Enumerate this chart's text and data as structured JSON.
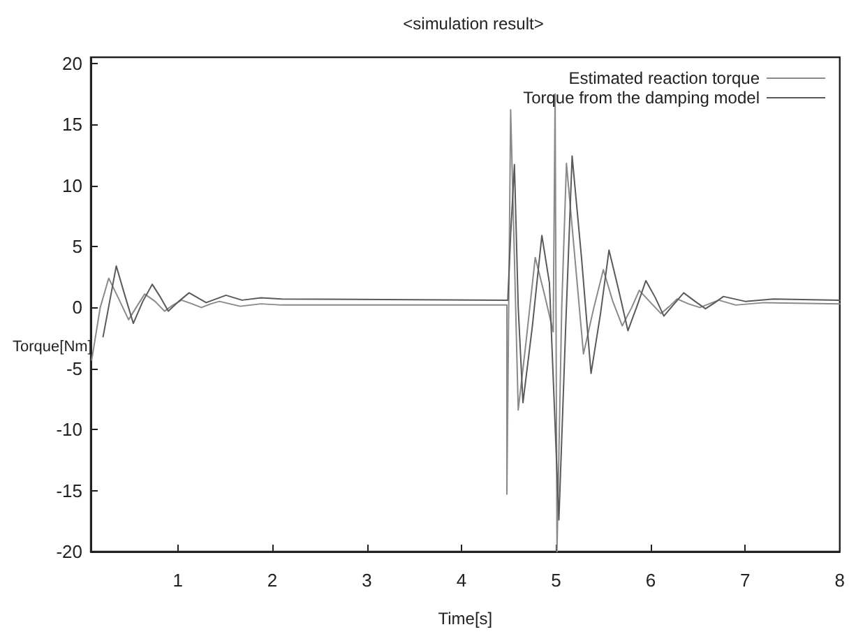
{
  "chart_data": {
    "type": "line",
    "title": "<simulation result>",
    "xlabel": "Time[s]",
    "ylabel": "Torque[Nm]",
    "xlim": [
      0.08,
      8
    ],
    "xticks": [
      1,
      2,
      3,
      4,
      5,
      6,
      7,
      8
    ],
    "ylim": [
      -20,
      20.5
    ],
    "yticks": [
      -20,
      -15,
      -10,
      -5,
      0,
      5,
      10,
      15,
      20
    ],
    "grid": false,
    "legend": "top right",
    "marker": "none",
    "line_style": "solid",
    "series": [
      {
        "name": "Estimated reaction torque",
        "color": "#8a8a8a",
        "x": [
          0.09,
          0.18,
          0.27,
          0.37,
          0.48,
          0.56,
          0.65,
          0.76,
          0.86,
          0.95,
          1.04,
          1.15,
          1.25,
          1.35,
          1.44,
          1.66,
          1.88,
          2.1,
          4.48,
          4.48,
          4.52,
          4.56,
          4.6,
          4.68,
          4.78,
          4.88,
          4.97,
          4.99,
          5.01,
          5.06,
          5.11,
          5.2,
          5.29,
          5.4,
          5.5,
          5.6,
          5.7,
          5.8,
          5.88,
          6.0,
          6.11,
          6.2,
          6.28,
          6.4,
          6.52,
          6.62,
          6.72,
          6.9,
          7.2,
          8.0
        ],
        "values": [
          -4.3,
          0,
          2.4,
          0.8,
          -1.0,
          0,
          1.1,
          0.5,
          -0.3,
          0.2,
          0.6,
          0.3,
          0,
          0.3,
          0.5,
          0.1,
          0.3,
          0.2,
          0.2,
          -15.3,
          16.2,
          4,
          -8.4,
          -3,
          4.1,
          1,
          -2.0,
          17.5,
          -20,
          0,
          11.8,
          4,
          -3.8,
          0,
          3.1,
          0.5,
          -1.5,
          0,
          1.4,
          0.4,
          -0.5,
          0.1,
          0.7,
          0.3,
          0,
          0.3,
          0.6,
          0.2,
          0.4,
          0.3
        ]
      },
      {
        "name": "Torque from the damping model",
        "color": "#5a5a5a",
        "x": [
          0.21,
          0.28,
          0.35,
          0.44,
          0.53,
          0.63,
          0.73,
          0.82,
          0.9,
          1.01,
          1.12,
          1.3,
          1.51,
          1.68,
          1.88,
          2.1,
          4.49,
          4.52,
          4.56,
          4.6,
          4.65,
          4.75,
          4.85,
          4.93,
          5.03,
          5.1,
          5.17,
          5.27,
          5.37,
          5.47,
          5.56,
          5.66,
          5.76,
          5.86,
          5.95,
          6.05,
          6.14,
          6.25,
          6.35,
          6.47,
          6.58,
          6.68,
          6.77,
          7.0,
          7.3,
          8.0
        ],
        "values": [
          -2.4,
          0.5,
          3.4,
          1.0,
          -1.3,
          0.5,
          1.9,
          0.8,
          -0.3,
          0.5,
          1.2,
          0.4,
          1.0,
          0.6,
          0.8,
          0.7,
          0.6,
          6,
          11.7,
          0,
          -7.8,
          -1.5,
          5.9,
          2,
          -17.4,
          -2,
          12.4,
          4,
          -5.4,
          -0.5,
          4.7,
          1.5,
          -1.9,
          0.2,
          2.2,
          0.8,
          -0.7,
          0.3,
          1.2,
          0.5,
          -0.1,
          0.4,
          0.9,
          0.5,
          0.7,
          0.6
        ]
      }
    ]
  }
}
